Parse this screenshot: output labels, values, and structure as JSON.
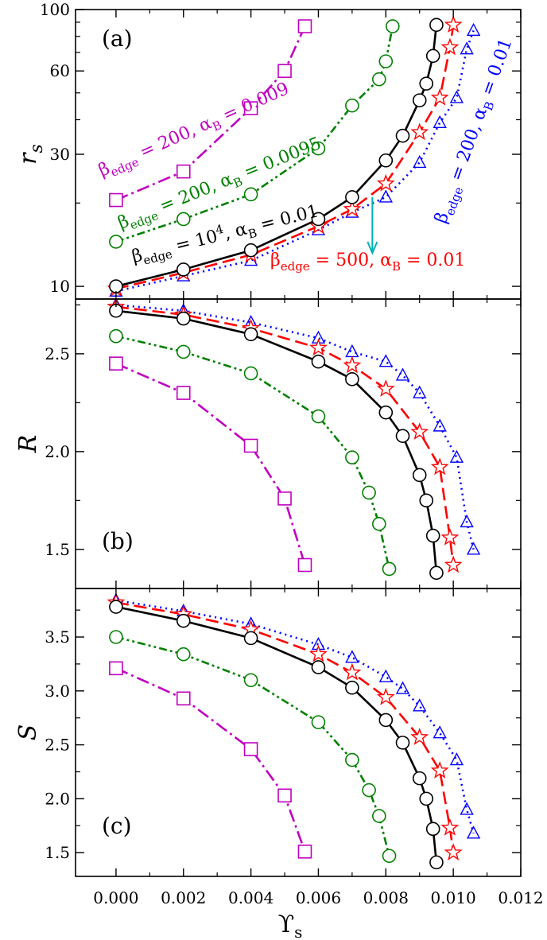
{
  "colors": {
    "black": "#000000",
    "red": "#ff0000",
    "blue": "#0000ff",
    "green": "#008000",
    "magenta": "#c000c0",
    "cyan": "#00b0b0"
  },
  "x_axis": {
    "label": "ϒ",
    "label_sub": "s",
    "ticks": [
      0.0,
      0.002,
      0.004,
      0.006,
      0.008,
      0.01,
      0.012
    ],
    "tick_labels": [
      "0.000",
      "0.002",
      "0.004",
      "0.006",
      "0.008",
      "0.010",
      "0.012"
    ],
    "range": [
      -0.0012,
      0.012
    ]
  },
  "chart_data": [
    {
      "panel": "(a)",
      "type": "line",
      "ylabel": "r",
      "ylabel_sub": "s",
      "yscale": "log",
      "ylim": [
        9,
        100
      ],
      "yticks": [
        10,
        30,
        60,
        100
      ],
      "ytick_labels": [
        "10",
        "30",
        "60",
        "100"
      ],
      "series": [
        {
          "key": "k",
          "x": [
            0,
            0.002,
            0.004,
            0.006,
            0.007,
            0.008,
            0.0085,
            0.009,
            0.0092,
            0.0094,
            0.0095
          ],
          "y": [
            10,
            11.5,
            13.5,
            17.5,
            21,
            28.5,
            35,
            47,
            54,
            68,
            88
          ]
        },
        {
          "key": "r",
          "x": [
            0,
            0.002,
            0.004,
            0.006,
            0.007,
            0.008,
            0.009,
            0.0096,
            0.0099,
            0.01
          ],
          "y": [
            9.8,
            11.2,
            13,
            16.5,
            19,
            23.5,
            36,
            48,
            73,
            88
          ]
        },
        {
          "key": "b",
          "x": [
            0,
            0.002,
            0.004,
            0.006,
            0.007,
            0.008,
            0.009,
            0.0096,
            0.0101,
            0.0104,
            0.0106
          ],
          "y": [
            9.6,
            10.9,
            12.4,
            16,
            18.5,
            21,
            28,
            39,
            48,
            72,
            84
          ]
        },
        {
          "key": "g",
          "x": [
            0,
            0.002,
            0.004,
            0.006,
            0.007,
            0.0078,
            0.008,
            0.0082
          ],
          "y": [
            14.5,
            17.5,
            21.5,
            31.5,
            45,
            56,
            65,
            87
          ]
        },
        {
          "key": "m",
          "x": [
            0,
            0.002,
            0.004,
            0.005,
            0.0056
          ],
          "y": [
            20.5,
            26,
            44,
            60,
            87
          ]
        }
      ]
    },
    {
      "panel": "(b)",
      "type": "line",
      "ylabel": "R",
      "ylabel_sub": "",
      "yscale": "linear",
      "ylim": [
        1.3,
        2.78
      ],
      "yticks": [
        1.5,
        2.0,
        2.5
      ],
      "ytick_labels": [
        "1.5",
        "2.0",
        "2.5"
      ],
      "series": [
        {
          "key": "k",
          "x": [
            0,
            0.002,
            0.004,
            0.006,
            0.007,
            0.008,
            0.0085,
            0.009,
            0.0092,
            0.0094,
            0.0095
          ],
          "y": [
            2.72,
            2.68,
            2.6,
            2.46,
            2.37,
            2.2,
            2.08,
            1.88,
            1.75,
            1.57,
            1.38
          ]
        },
        {
          "key": "r",
          "x": [
            0,
            0.002,
            0.004,
            0.006,
            0.007,
            0.008,
            0.009,
            0.0096,
            0.0099,
            0.01
          ],
          "y": [
            2.74,
            2.7,
            2.63,
            2.53,
            2.44,
            2.32,
            2.1,
            1.92,
            1.56,
            1.42
          ]
        },
        {
          "key": "b",
          "x": [
            0,
            0.002,
            0.004,
            0.006,
            0.007,
            0.008,
            0.0085,
            0.009,
            0.0096,
            0.0101,
            0.0104,
            0.0106
          ],
          "y": [
            2.75,
            2.72,
            2.66,
            2.58,
            2.51,
            2.46,
            2.39,
            2.3,
            2.13,
            1.97,
            1.64,
            1.5
          ]
        },
        {
          "key": "g",
          "x": [
            0,
            0.002,
            0.004,
            0.006,
            0.007,
            0.0075,
            0.0078,
            0.0081
          ],
          "y": [
            2.59,
            2.51,
            2.4,
            2.18,
            1.97,
            1.79,
            1.63,
            1.4
          ]
        },
        {
          "key": "m",
          "x": [
            0,
            0.002,
            0.004,
            0.005,
            0.0056
          ],
          "y": [
            2.45,
            2.3,
            2.03,
            1.76,
            1.42
          ]
        }
      ]
    },
    {
      "panel": "(c)",
      "type": "line",
      "ylabel": "S",
      "ylabel_sub": "",
      "yscale": "linear",
      "ylim": [
        1.28,
        3.95
      ],
      "yticks": [
        1.5,
        2.0,
        2.5,
        3.0,
        3.5
      ],
      "ytick_labels": [
        "1.5",
        "2.0",
        "2.5",
        "3.0",
        "3.5"
      ],
      "series": [
        {
          "key": "k",
          "x": [
            0,
            0.002,
            0.004,
            0.006,
            0.007,
            0.008,
            0.0085,
            0.009,
            0.0092,
            0.0094,
            0.0095
          ],
          "y": [
            3.78,
            3.65,
            3.49,
            3.22,
            3.03,
            2.73,
            2.52,
            2.19,
            2.0,
            1.72,
            1.41
          ]
        },
        {
          "key": "r",
          "x": [
            0,
            0.002,
            0.004,
            0.006,
            0.007,
            0.008,
            0.009,
            0.0096,
            0.0099,
            0.01
          ],
          "y": [
            3.82,
            3.71,
            3.57,
            3.34,
            3.17,
            2.94,
            2.57,
            2.26,
            1.73,
            1.5
          ]
        },
        {
          "key": "b",
          "x": [
            0,
            0.002,
            0.004,
            0.006,
            0.007,
            0.008,
            0.0085,
            0.009,
            0.0096,
            0.0101,
            0.0104,
            0.0106
          ],
          "y": [
            3.84,
            3.74,
            3.62,
            3.43,
            3.31,
            3.13,
            3.02,
            2.86,
            2.61,
            2.36,
            1.9,
            1.68
          ]
        },
        {
          "key": "g",
          "x": [
            0,
            0.002,
            0.004,
            0.006,
            0.007,
            0.0075,
            0.0078,
            0.0081
          ],
          "y": [
            3.5,
            3.34,
            3.1,
            2.71,
            2.36,
            2.08,
            1.84,
            1.47
          ]
        },
        {
          "key": "m",
          "x": [
            0,
            0.002,
            0.004,
            0.005,
            0.0056
          ],
          "y": [
            3.21,
            2.93,
            2.46,
            2.03,
            1.51
          ]
        }
      ]
    }
  ],
  "series_styles": {
    "k": {
      "color": "#000000",
      "dash": "none",
      "marker": "circle",
      "label_parts": [
        "β",
        "edge",
        " = 10",
        "4",
        ", α",
        "B",
        " = 0.01"
      ]
    },
    "r": {
      "color": "#ff0000",
      "dash": "16,7",
      "marker": "star",
      "label_parts": [
        "β",
        "edge",
        " = 500, α",
        "B",
        " = 0.01"
      ]
    },
    "b": {
      "color": "#0000ff",
      "dash": "2,5",
      "marker": "triangle",
      "label_parts": [
        "β",
        "edge",
        " = 200, α",
        "B",
        " = 0.01"
      ]
    },
    "g": {
      "color": "#008000",
      "dash": "10,4,3,4,3,4",
      "marker": "circle",
      "label_parts": [
        "β",
        "edge",
        " = 200, α",
        "B",
        " = 0.0095"
      ]
    },
    "m": {
      "color": "#c000c0",
      "dash": "16,5,3,5",
      "marker": "square",
      "label_parts": [
        "β",
        "edge",
        " = 200, α",
        "B",
        " = 0.009"
      ]
    }
  },
  "annotation_arrow": {
    "x": 0.0076,
    "y_from": 21,
    "y_to": 13.2,
    "color": "#00b0b0"
  }
}
